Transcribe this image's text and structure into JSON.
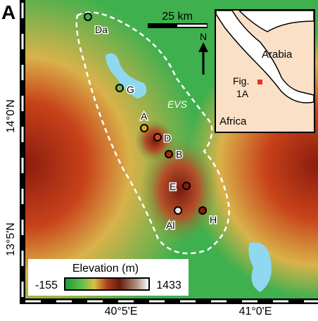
{
  "panel_label": "A",
  "scale_bar": "25 km",
  "north_label": "N",
  "zone_label": "EVS",
  "inset": {
    "region_labels": [
      "Arabia",
      "Africa"
    ],
    "figure_label": [
      "Fig.",
      "1A"
    ]
  },
  "sites": [
    "Da",
    "G",
    "A",
    "D",
    "B",
    "E",
    "Al",
    "H"
  ],
  "latitude_labels": [
    "14°0'N",
    "13°5'N"
  ],
  "longitude_labels": [
    "40°5'E",
    "41°0'E"
  ],
  "legend": {
    "title": "Elevation (m)",
    "min": "-155",
    "max": "1433"
  }
}
